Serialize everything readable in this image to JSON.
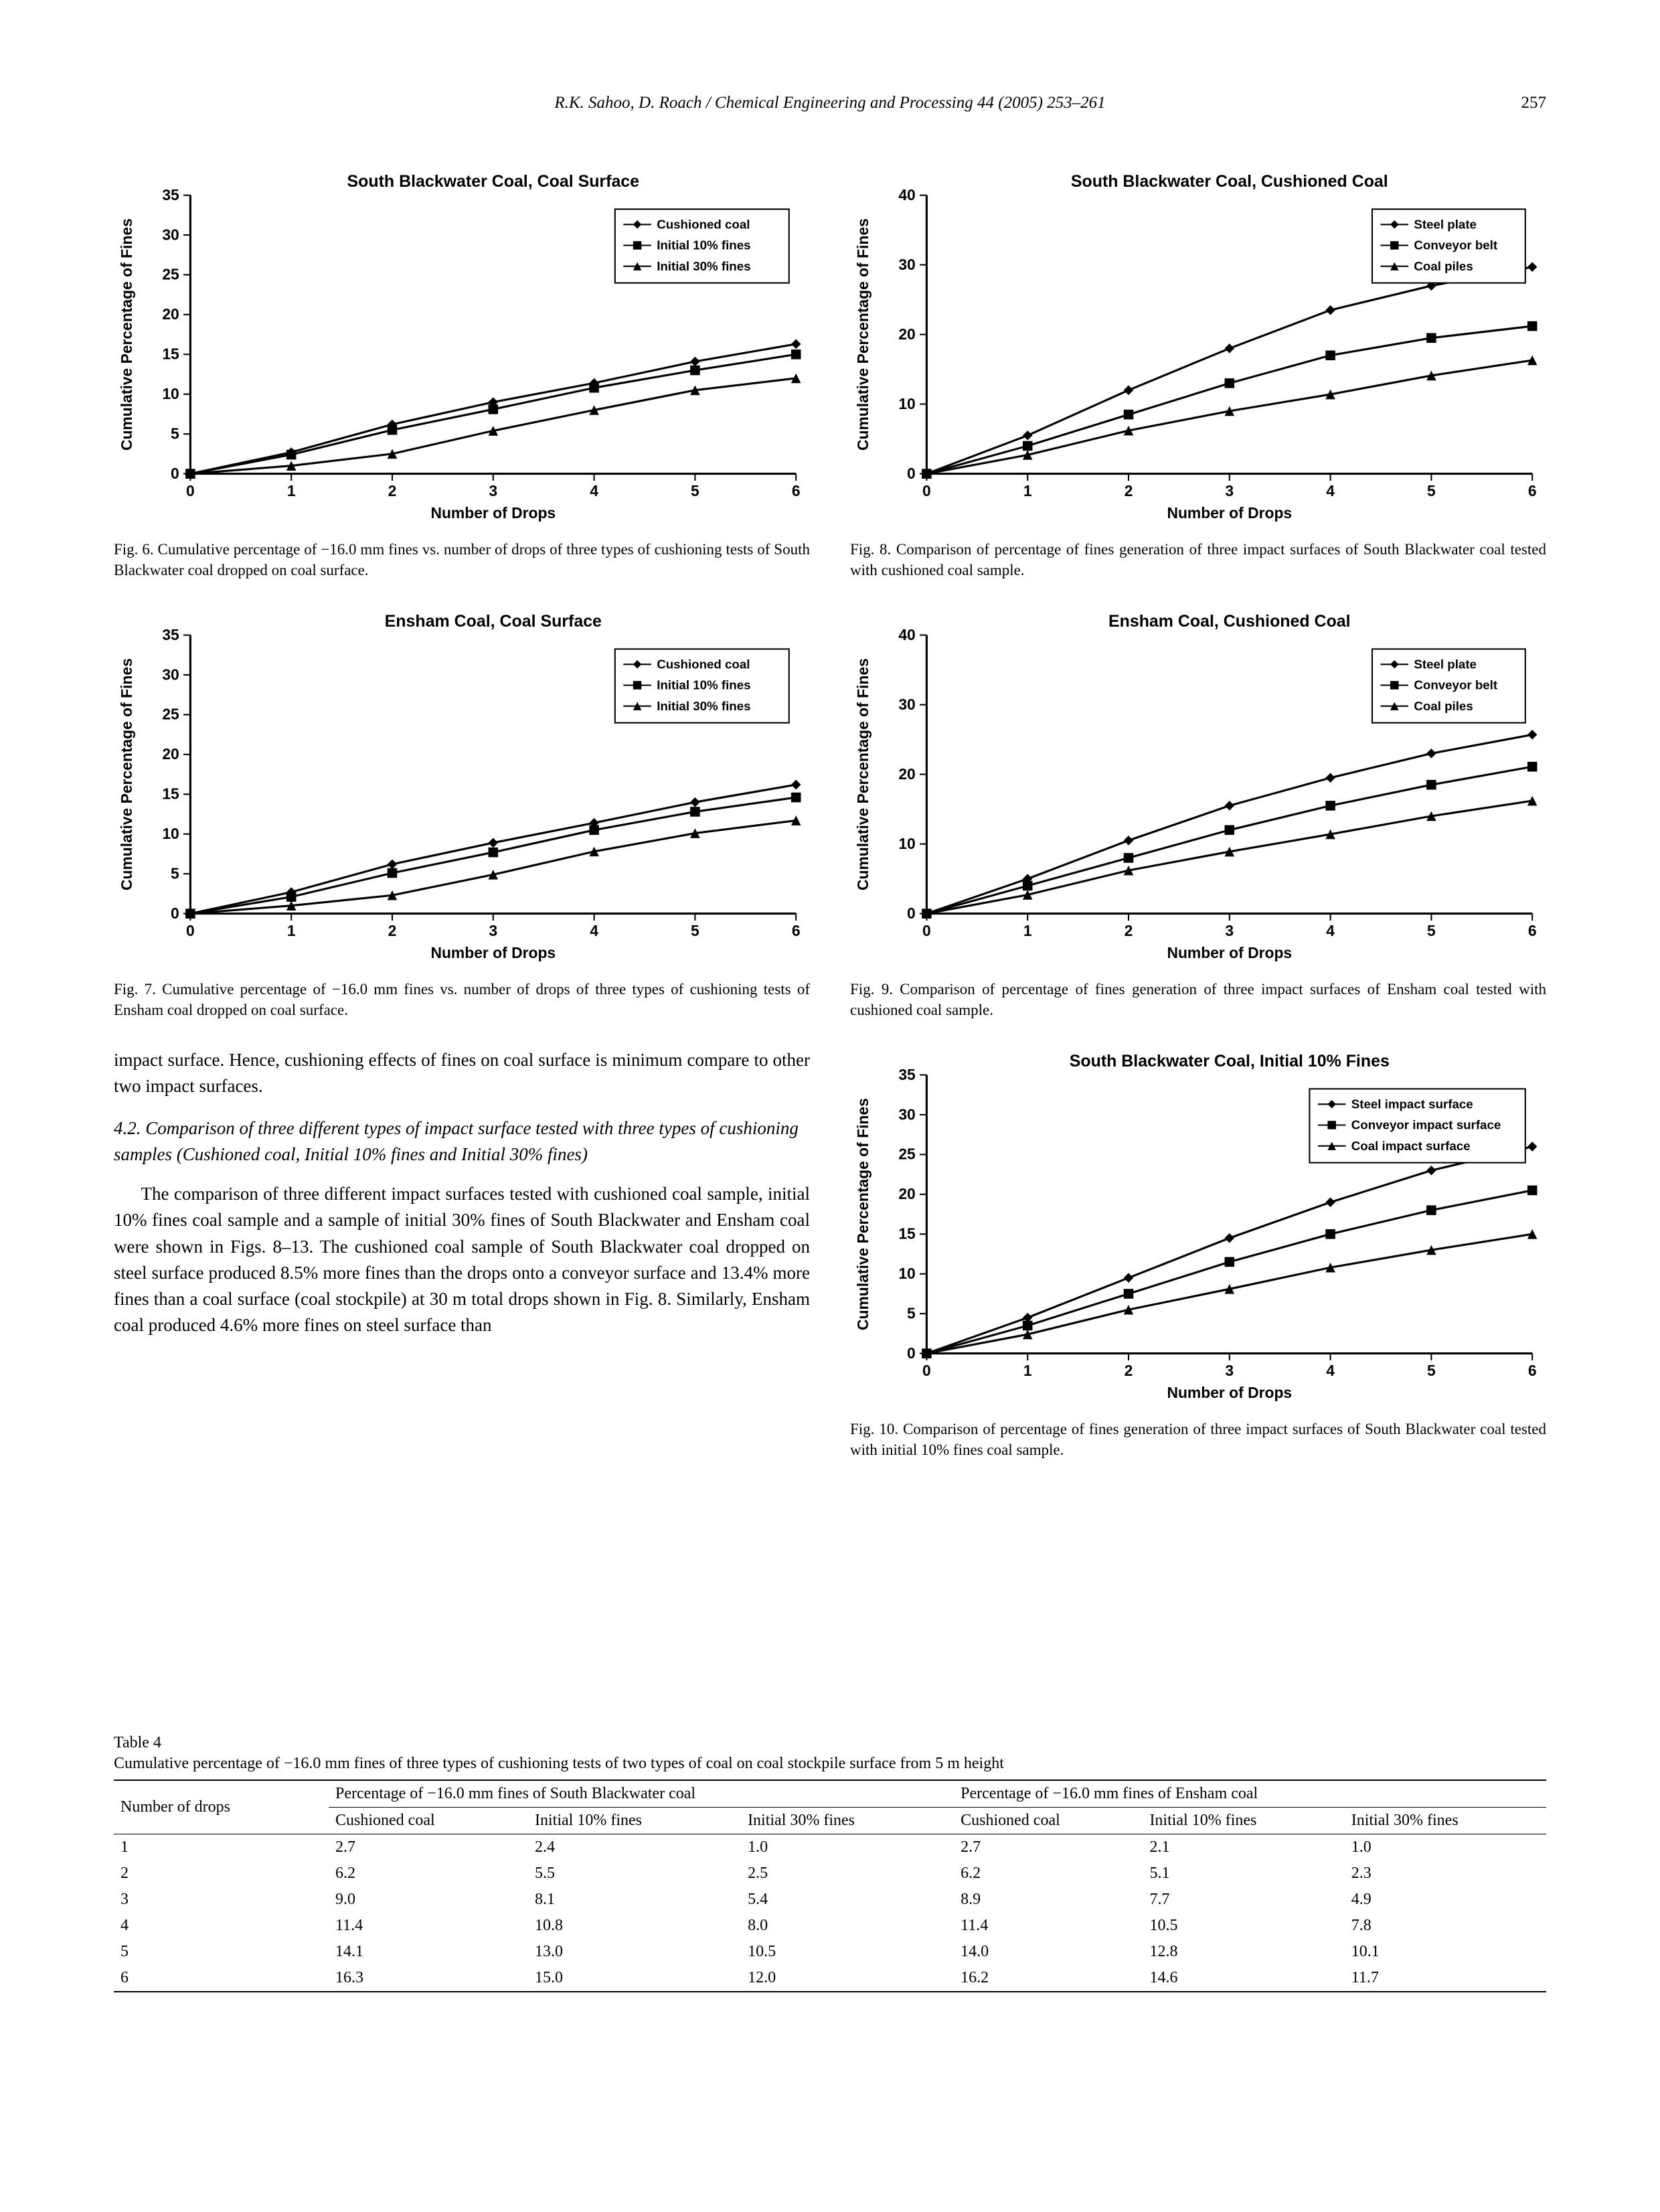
{
  "header": {
    "running": "R.K. Sahoo, D. Roach / Chemical Engineering and Processing 44 (2005) 253–261",
    "page_number": "257"
  },
  "chart_common": {
    "axis_font_size": 18,
    "title_font_size": 20,
    "tick_font_size": 18,
    "line_width": 2,
    "marker_size": 6,
    "background": "#ffffff",
    "axis_color": "#000000",
    "xlabel": "Number of Drops",
    "ylabel": "Cumulative Percentage of Fines",
    "x_ticks": [
      0,
      1,
      2,
      3,
      4,
      5,
      6
    ],
    "markers": {
      "diamond": "diamond",
      "square": "square",
      "triangle": "triangle"
    }
  },
  "fig6": {
    "title": "South Blackwater Coal, Coal Surface",
    "caption": "Fig. 6. Cumulative percentage of −16.0 mm fines vs. number of drops of three types of cushioning tests of South Blackwater coal dropped on coal surface.",
    "ylim": [
      0,
      35
    ],
    "ytick_step": 5,
    "xlim": [
      0,
      6
    ],
    "series": [
      {
        "name": "Cushioned coal",
        "marker": "diamond",
        "color": "#000000",
        "x": [
          0,
          1,
          2,
          3,
          4,
          5,
          6
        ],
        "y": [
          0,
          2.7,
          6.2,
          9.0,
          11.4,
          14.1,
          16.3
        ]
      },
      {
        "name": "Initial 10% fines",
        "marker": "square",
        "color": "#000000",
        "x": [
          0,
          1,
          2,
          3,
          4,
          5,
          6
        ],
        "y": [
          0,
          2.4,
          5.5,
          8.1,
          10.8,
          13.0,
          15.0
        ]
      },
      {
        "name": "Initial 30% fines",
        "marker": "triangle",
        "color": "#000000",
        "x": [
          0,
          1,
          2,
          3,
          4,
          5,
          6
        ],
        "y": [
          0,
          1.0,
          2.5,
          5.4,
          8.0,
          10.5,
          12.0
        ]
      }
    ]
  },
  "fig7": {
    "title": "Ensham Coal, Coal Surface",
    "caption": "Fig. 7. Cumulative percentage of −16.0 mm fines vs. number of drops of three types of cushioning tests of Ensham coal dropped on coal surface.",
    "ylim": [
      0,
      35
    ],
    "ytick_step": 5,
    "xlim": [
      0,
      6
    ],
    "series": [
      {
        "name": "Cushioned coal",
        "marker": "diamond",
        "color": "#000000",
        "x": [
          0,
          1,
          2,
          3,
          4,
          5,
          6
        ],
        "y": [
          0,
          2.7,
          6.2,
          8.9,
          11.4,
          14.0,
          16.2
        ]
      },
      {
        "name": "Initial 10% fines",
        "marker": "square",
        "color": "#000000",
        "x": [
          0,
          1,
          2,
          3,
          4,
          5,
          6
        ],
        "y": [
          0,
          2.1,
          5.1,
          7.7,
          10.5,
          12.8,
          14.6
        ]
      },
      {
        "name": "Initial 30% fines",
        "marker": "triangle",
        "color": "#000000",
        "x": [
          0,
          1,
          2,
          3,
          4,
          5,
          6
        ],
        "y": [
          0,
          1.0,
          2.3,
          4.9,
          7.8,
          10.1,
          11.7
        ]
      }
    ]
  },
  "fig8": {
    "title": "South Blackwater Coal, Cushioned Coal",
    "caption": "Fig. 8. Comparison of percentage of fines generation of three impact surfaces of South Blackwater coal tested with cushioned coal sample.",
    "ylim": [
      0,
      40
    ],
    "ytick_step": 10,
    "xlim": [
      0,
      6
    ],
    "series": [
      {
        "name": "Steel plate",
        "marker": "diamond",
        "color": "#000000",
        "x": [
          0,
          1,
          2,
          3,
          4,
          5,
          6
        ],
        "y": [
          0,
          5.5,
          12.0,
          18.0,
          23.5,
          27.0,
          29.7
        ]
      },
      {
        "name": "Conveyor belt",
        "marker": "square",
        "color": "#000000",
        "x": [
          0,
          1,
          2,
          3,
          4,
          5,
          6
        ],
        "y": [
          0,
          4.0,
          8.5,
          13.0,
          17.0,
          19.5,
          21.2
        ]
      },
      {
        "name": "Coal piles",
        "marker": "triangle",
        "color": "#000000",
        "x": [
          0,
          1,
          2,
          3,
          4,
          5,
          6
        ],
        "y": [
          0,
          2.7,
          6.2,
          9.0,
          11.4,
          14.1,
          16.3
        ]
      }
    ]
  },
  "fig9": {
    "title": "Ensham Coal, Cushioned Coal",
    "caption": "Fig. 9. Comparison of percentage of fines generation of three impact surfaces of Ensham coal tested with cushioned coal sample.",
    "ylim": [
      0,
      40
    ],
    "ytick_step": 10,
    "xlim": [
      0,
      6
    ],
    "series": [
      {
        "name": "Steel plate",
        "marker": "diamond",
        "color": "#000000",
        "x": [
          0,
          1,
          2,
          3,
          4,
          5,
          6
        ],
        "y": [
          0,
          5.0,
          10.5,
          15.5,
          19.5,
          23.0,
          25.7
        ]
      },
      {
        "name": "Conveyor belt",
        "marker": "square",
        "color": "#000000",
        "x": [
          0,
          1,
          2,
          3,
          4,
          5,
          6
        ],
        "y": [
          0,
          4.0,
          8.0,
          12.0,
          15.5,
          18.5,
          21.1
        ]
      },
      {
        "name": "Coal piles",
        "marker": "triangle",
        "color": "#000000",
        "x": [
          0,
          1,
          2,
          3,
          4,
          5,
          6
        ],
        "y": [
          0,
          2.7,
          6.2,
          8.9,
          11.4,
          14.0,
          16.2
        ]
      }
    ]
  },
  "fig10": {
    "title": "South Blackwater Coal, Initial 10% Fines",
    "caption": "Fig. 10. Comparison of percentage of fines generation of three impact surfaces of South Blackwater coal tested with initial 10% fines coal sample.",
    "ylim": [
      0,
      35
    ],
    "ytick_step": 5,
    "xlim": [
      0,
      6
    ],
    "series": [
      {
        "name": "Steel impact surface",
        "marker": "diamond",
        "color": "#000000",
        "x": [
          0,
          1,
          2,
          3,
          4,
          5,
          6
        ],
        "y": [
          0,
          4.5,
          9.5,
          14.5,
          19.0,
          23.0,
          26.0
        ]
      },
      {
        "name": "Conveyor impact surface",
        "marker": "square",
        "color": "#000000",
        "x": [
          0,
          1,
          2,
          3,
          4,
          5,
          6
        ],
        "y": [
          0,
          3.5,
          7.5,
          11.5,
          15.0,
          18.0,
          20.5
        ]
      },
      {
        "name": "Coal impact surface",
        "marker": "triangle",
        "color": "#000000",
        "x": [
          0,
          1,
          2,
          3,
          4,
          5,
          6
        ],
        "y": [
          0,
          2.4,
          5.5,
          8.1,
          10.8,
          13.0,
          15.0
        ]
      }
    ]
  },
  "text": {
    "para1": "impact surface. Hence, cushioning effects of fines on coal surface is minimum compare to other two impact surfaces.",
    "sec_title": "4.2. Comparison of three different types of impact surface tested with three types of cushioning samples (Cushioned coal, Initial 10% fines and Initial 30% fines)",
    "para2": "The comparison of three different impact surfaces tested with cushioned coal sample, initial 10% fines coal sample and a sample of initial 30% fines of South Blackwater and Ensham coal were shown in Figs. 8–13. The cushioned coal sample of South Blackwater coal dropped on steel surface produced 8.5% more fines than the drops onto a conveyor surface and 13.4% more fines than a coal surface (coal stockpile) at 30 m total drops shown in Fig. 8. Similarly, Ensham coal produced 4.6% more fines on steel surface than"
  },
  "table4": {
    "label": "Table 4",
    "caption": "Cumulative percentage of −16.0 mm fines of three types of cushioning tests of two types of coal on coal stockpile surface from 5 m height",
    "col_group_left": "Percentage of −16.0 mm fines of South Blackwater coal",
    "col_group_right": "Percentage of −16.0 mm fines of Ensham coal",
    "header_row1": "Number of drops",
    "subcols": [
      "Cushioned coal",
      "Initial 10% fines",
      "Initial 30% fines",
      "Cushioned coal",
      "Initial 10% fines",
      "Initial 30% fines"
    ],
    "rows": [
      [
        "1",
        "2.7",
        "2.4",
        "1.0",
        "2.7",
        "2.1",
        "1.0"
      ],
      [
        "2",
        "6.2",
        "5.5",
        "2.5",
        "6.2",
        "5.1",
        "2.3"
      ],
      [
        "3",
        "9.0",
        "8.1",
        "5.4",
        "8.9",
        "7.7",
        "4.9"
      ],
      [
        "4",
        "11.4",
        "10.8",
        "8.0",
        "11.4",
        "10.5",
        "7.8"
      ],
      [
        "5",
        "14.1",
        "13.0",
        "10.5",
        "14.0",
        "12.8",
        "10.1"
      ],
      [
        "6",
        "16.3",
        "15.0",
        "12.0",
        "16.2",
        "14.6",
        "11.7"
      ]
    ]
  }
}
